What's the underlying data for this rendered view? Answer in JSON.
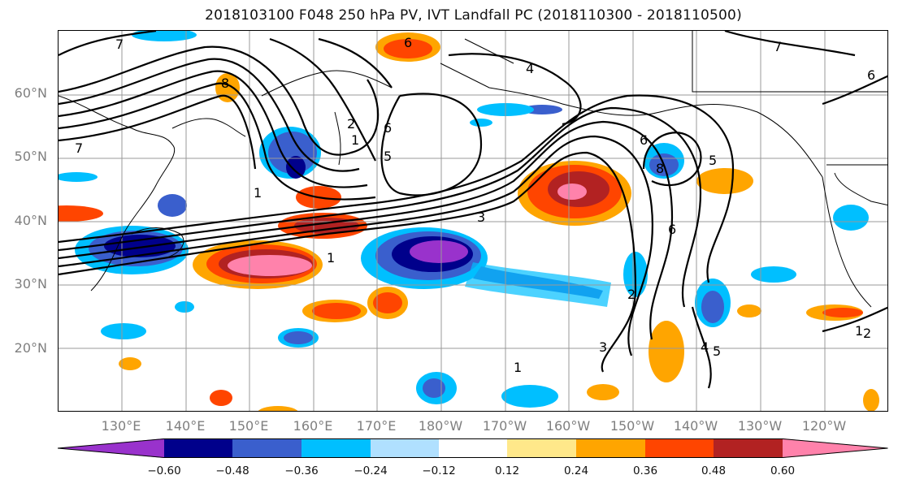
{
  "title": "2018103100 F048 250 hPa PV, IVT Landfall PC (2018110300 - 2018110500)",
  "latitude_labels": [
    "60°N",
    "50°N",
    "40°N",
    "30°N",
    "20°N"
  ],
  "longitude_labels": [
    "130°E",
    "140°E",
    "150°E",
    "160°E",
    "170°E",
    "180°W",
    "170°W",
    "160°W",
    "150°W",
    "140°W",
    "130°W",
    "120°W"
  ],
  "colorbar": {
    "tick_labels": [
      "−0.60",
      "−0.48",
      "−0.36",
      "−0.24",
      "−0.12",
      "0.12",
      "0.24",
      "0.36",
      "0.48",
      "0.60"
    ],
    "colors": [
      "#9932cc",
      "#00008b",
      "#3a5fcd",
      "#00bfff",
      "#b0e0ff",
      "#ffffff",
      "#ffe88a",
      "#ffa500",
      "#ff4500",
      "#b22222",
      "#ff82ab"
    ]
  },
  "contour_labels": [
    "7",
    "8",
    "6",
    "4",
    "7",
    "6",
    "2",
    "1",
    "5",
    "6",
    "7",
    "1",
    "3",
    "6",
    "5",
    "8",
    "6",
    "2",
    "3",
    "4",
    "5",
    "1",
    "2",
    "1",
    "1"
  ]
}
